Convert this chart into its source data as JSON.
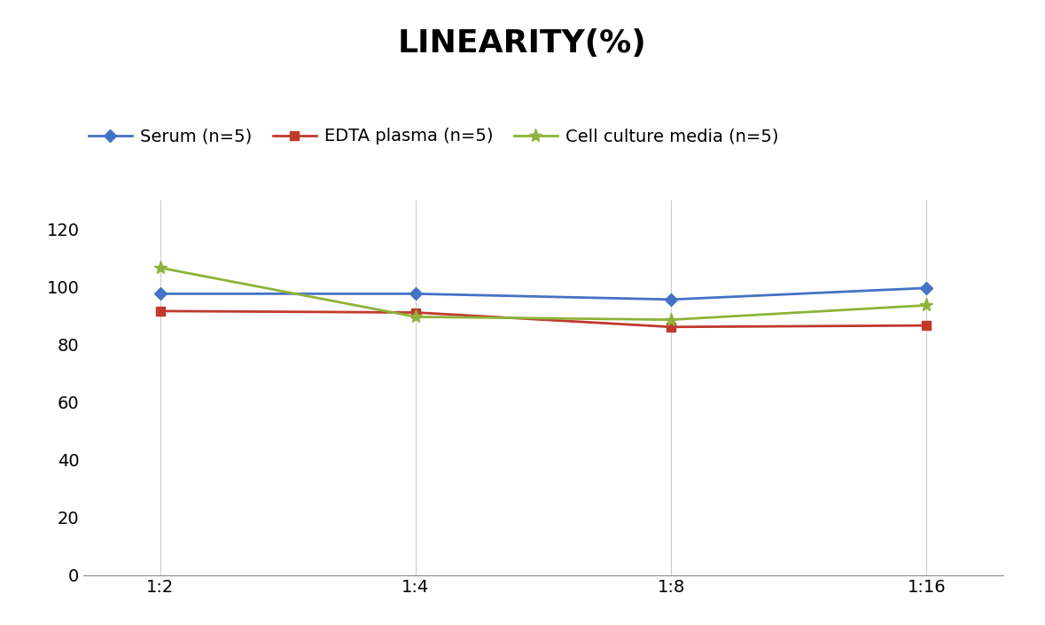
{
  "title": "LINEARITY(%)",
  "title_fontsize": 26,
  "title_fontweight": "bold",
  "x_labels": [
    "1:2",
    "1:4",
    "1:8",
    "1:16"
  ],
  "x_positions": [
    0,
    1,
    2,
    3
  ],
  "series": [
    {
      "name": "Serum (n=5)",
      "values": [
        97.5,
        97.5,
        95.5,
        99.5
      ],
      "color": "#4472C4",
      "marker": "D",
      "marker_size": 7,
      "linewidth": 2
    },
    {
      "name": "EDTA plasma (n=5)",
      "values": [
        91.5,
        91.0,
        86.0,
        86.5
      ],
      "color": "#C0392B",
      "marker": "s",
      "marker_size": 7,
      "linewidth": 2
    },
    {
      "name": "Cell culture media (n=5)",
      "values": [
        106.5,
        89.5,
        88.5,
        93.5
      ],
      "color": "#8DB33A",
      "marker": "*",
      "marker_size": 11,
      "linewidth": 2
    }
  ],
  "ylim": [
    0,
    130
  ],
  "yticks": [
    0,
    20,
    40,
    60,
    80,
    100,
    120
  ],
  "grid_color": "#CCCCCC",
  "background_color": "#FFFFFF",
  "legend_fontsize": 14,
  "tick_fontsize": 14
}
